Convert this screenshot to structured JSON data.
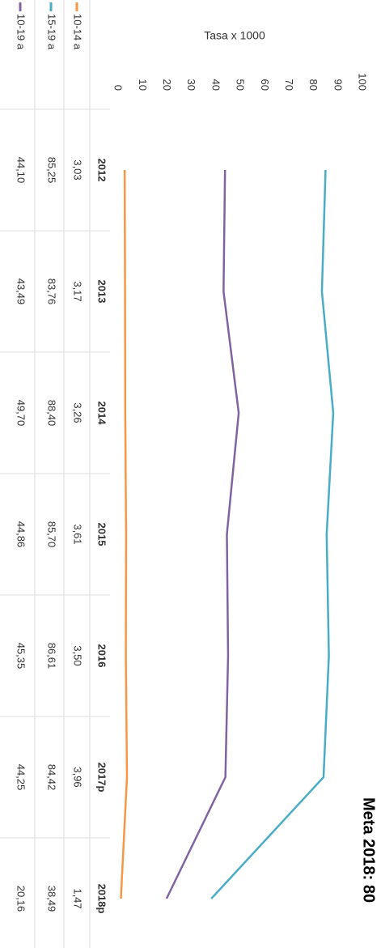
{
  "chart_data": {
    "type": "line",
    "title": "Meta 2018: 80",
    "y_label": "Tasa x 1000",
    "categories": [
      "2012",
      "2013",
      "2014",
      "2015",
      "2016",
      "2017p",
      "2018p"
    ],
    "ylim": [
      0,
      100
    ],
    "yticks": [
      0,
      10,
      20,
      30,
      40,
      50,
      60,
      70,
      80,
      90,
      100
    ],
    "grid": false,
    "series": [
      {
        "name": "10-14 a",
        "color": "#f79646",
        "values": [
          3.03,
          3.17,
          3.26,
          3.61,
          3.5,
          3.96,
          1.47
        ],
        "value_labels": [
          "3,03",
          "3,17",
          "3,26",
          "3,61",
          "3,50",
          "3,96",
          "1,47"
        ]
      },
      {
        "name": "15-19 a",
        "color": "#4bacc6",
        "values": [
          85.25,
          83.76,
          88.4,
          85.7,
          86.61,
          84.42,
          38.49
        ],
        "value_labels": [
          "85,25",
          "83,76",
          "88,40",
          "85,70",
          "86,61",
          "84,42",
          "38,49"
        ]
      },
      {
        "name": "10-19 a",
        "color": "#8064a2",
        "values": [
          44.1,
          43.49,
          49.7,
          44.86,
          45.35,
          44.25,
          20.16
        ],
        "value_labels": [
          "44,10",
          "43,49",
          "49,70",
          "44,86",
          "45,35",
          "44,25",
          "20,16"
        ]
      }
    ]
  }
}
